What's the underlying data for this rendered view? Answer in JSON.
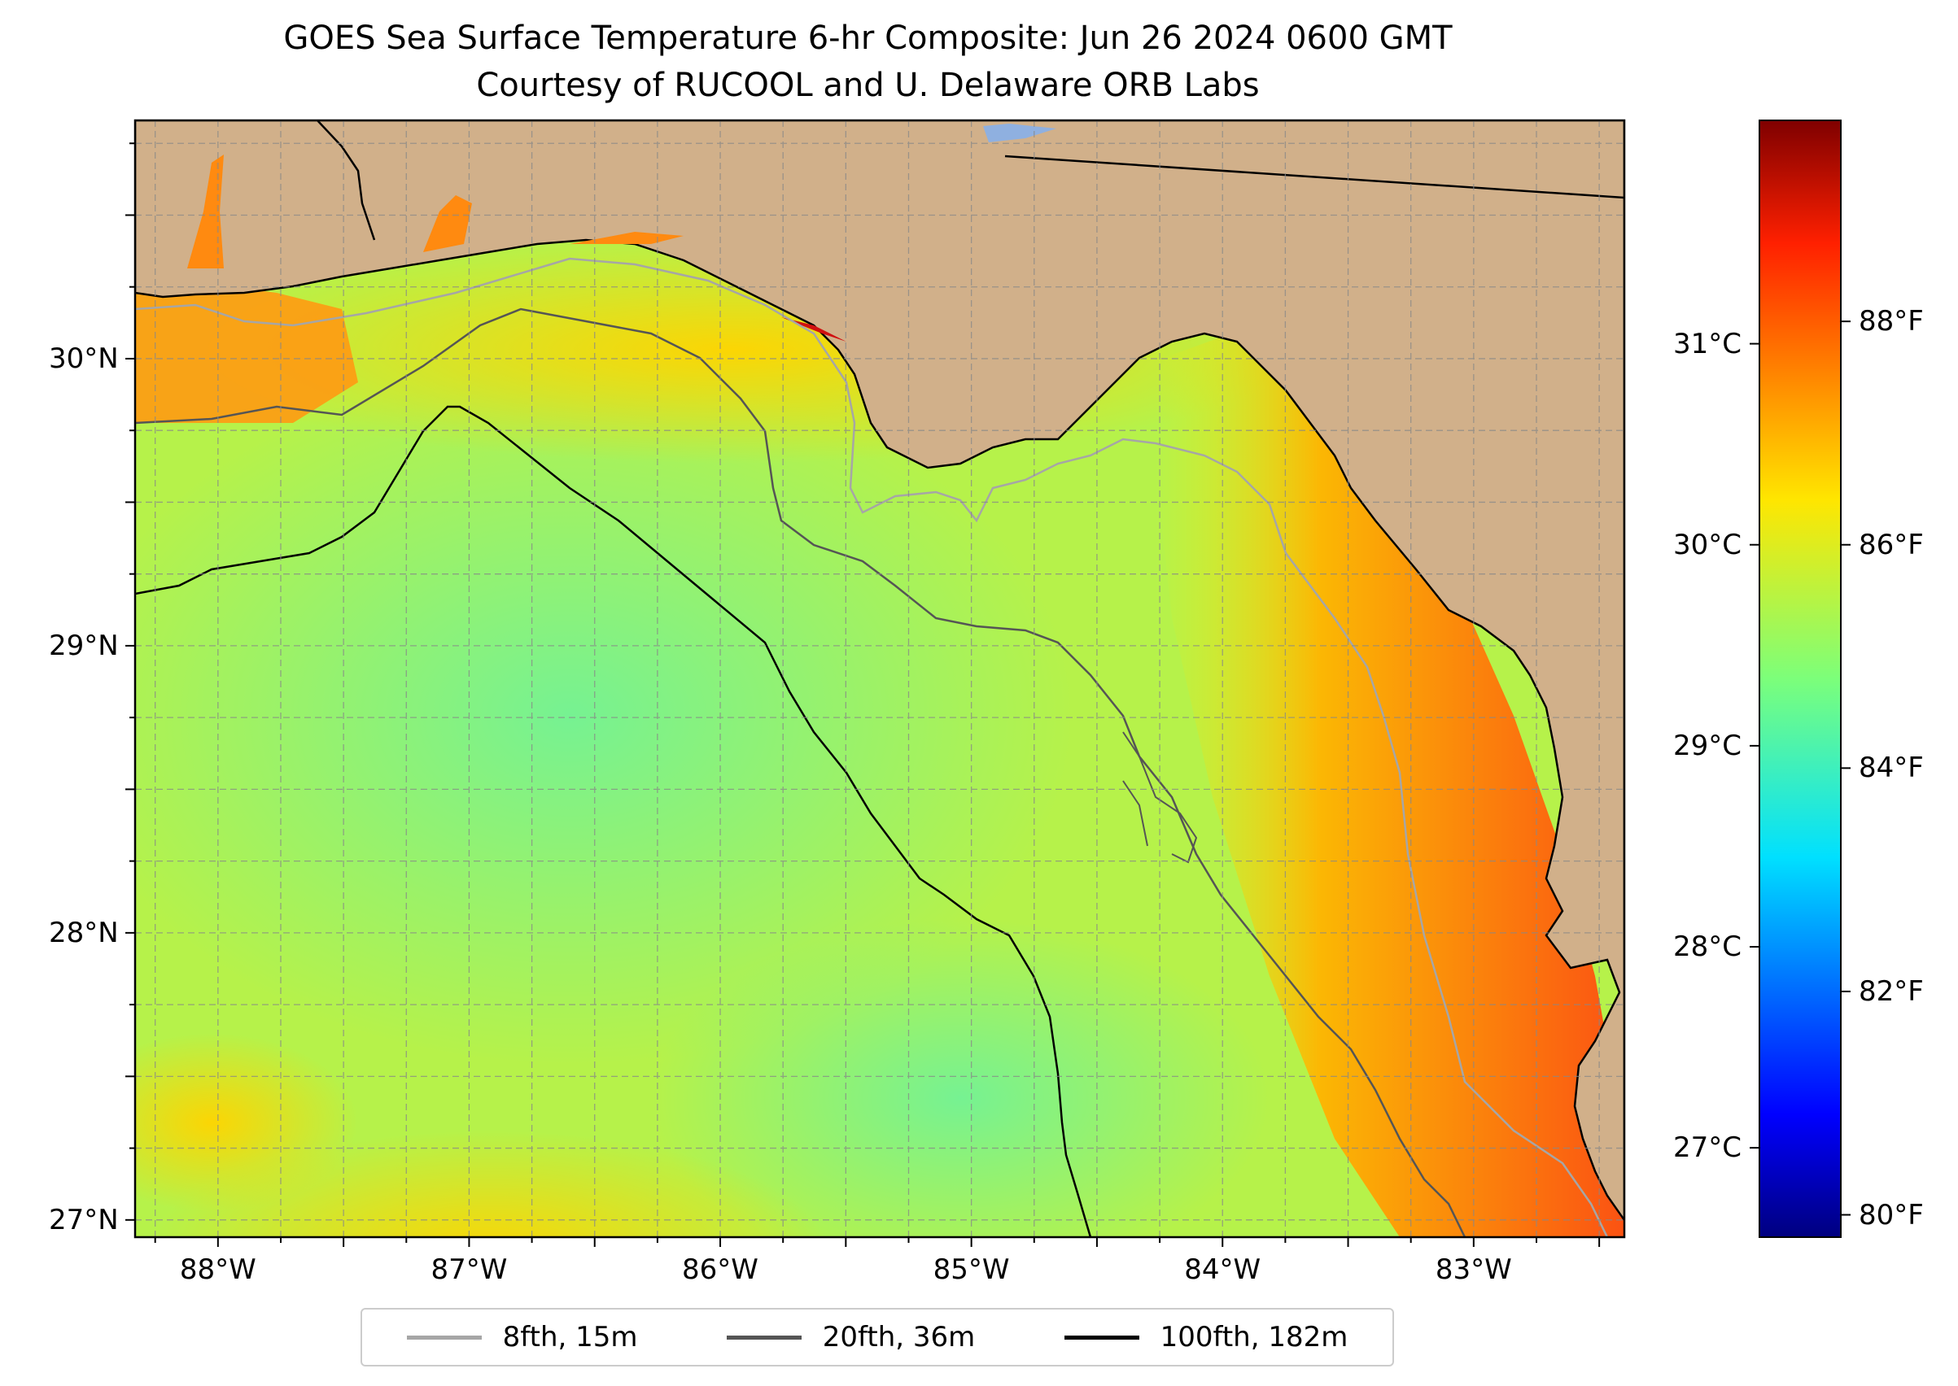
{
  "title": "GOES Sea Surface Temperature 6-hr Composite: Jun 26 2024 0600 GMT",
  "subtitle": "Courtesy of RUCOOL and U. Delaware ORB Labs",
  "map": {
    "lon_range": [
      -88.33,
      -82.4
    ],
    "lat_range": [
      26.94,
      30.83
    ],
    "lon_ticks": [
      {
        "value": -88,
        "label": "88°W"
      },
      {
        "value": -87,
        "label": "87°W"
      },
      {
        "value": -86,
        "label": "86°W"
      },
      {
        "value": -85,
        "label": "85°W"
      },
      {
        "value": -84,
        "label": "84°W"
      },
      {
        "value": -83,
        "label": "83°W"
      }
    ],
    "lat_ticks": [
      {
        "value": 30,
        "label": "30°N"
      },
      {
        "value": 29,
        "label": "29°N"
      },
      {
        "value": 28,
        "label": "28°N"
      },
      {
        "value": 27,
        "label": "27°N"
      }
    ],
    "colors": {
      "land": "#d1b08a",
      "sst_cool": "#7cf28c",
      "sst_mid": "#b6f24a",
      "sst_warm": "#f2ee10",
      "sst_orange": "#ff9a12",
      "sst_red": "#ff3c14",
      "isobath_15m": "#a6a6a6",
      "isobath_36m": "#555555",
      "isobath_182m": "#000000"
    }
  },
  "colorbar": {
    "colormap": "jet",
    "range_f": [
      79.8,
      89.8
    ],
    "celsius_ticks": [
      {
        "value": 31,
        "label": "31°C"
      },
      {
        "value": 30,
        "label": "30°C"
      },
      {
        "value": 29,
        "label": "29°C"
      },
      {
        "value": 28,
        "label": "28°C"
      },
      {
        "value": 27,
        "label": "27°C"
      }
    ],
    "fahrenheit_ticks": [
      {
        "value": 88,
        "label": "88°F"
      },
      {
        "value": 86,
        "label": "86°F"
      },
      {
        "value": 84,
        "label": "84°F"
      },
      {
        "value": 82,
        "label": "82°F"
      },
      {
        "value": 80,
        "label": "80°F"
      }
    ]
  },
  "legend": {
    "items": [
      {
        "label": "8fth, 15m",
        "color": "#a6a6a6"
      },
      {
        "label": "20fth, 36m",
        "color": "#555555"
      },
      {
        "label": "100fth, 182m",
        "color": "#000000"
      }
    ]
  }
}
